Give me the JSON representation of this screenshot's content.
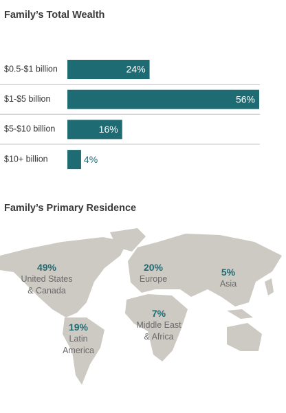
{
  "chart_data": [
    {
      "type": "bar",
      "orientation": "horizontal",
      "title": "Family’s Total Wealth",
      "categories": [
        "$0.5-$1 billion",
        "$1-$5 billion",
        "$5-$10 billion",
        "$10+ billion"
      ],
      "values": [
        24,
        56,
        16,
        4
      ],
      "value_labels": [
        "24%",
        "56%",
        "16%",
        "4%"
      ],
      "color": "#1f6b73"
    },
    {
      "type": "map",
      "title": "Family’s Primary Residence",
      "categories": [
        "United States & Canada",
        "Latin America",
        "Europe",
        "Middle East & Africa",
        "Asia"
      ],
      "values": [
        49,
        19,
        20,
        7,
        5
      ],
      "value_labels": [
        "49%",
        "19%",
        "20%",
        "7%",
        "5%"
      ],
      "color": "#1f6b73"
    }
  ]
}
